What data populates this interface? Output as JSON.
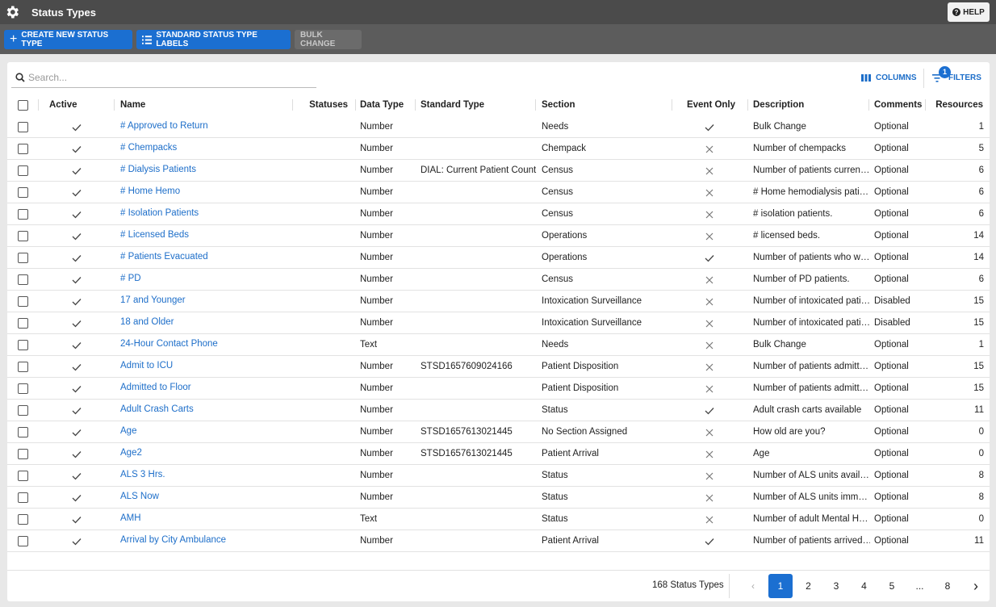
{
  "header": {
    "title": "Status Types",
    "help": "HELP"
  },
  "toolbar": {
    "create": "CREATE NEW STATUS TYPE",
    "labels": "STANDARD STATUS TYPE LABELS",
    "bulk": "BULK CHANGE"
  },
  "search": {
    "placeholder": "Search..."
  },
  "controls": {
    "columns": "COLUMNS",
    "filters": "FILTERS",
    "filter_count": 1
  },
  "table": {
    "columns": [
      "Active",
      "Name",
      "Statuses",
      "Data Type",
      "Standard Type",
      "Section",
      "Event Only",
      "Description",
      "Comments",
      "Resources"
    ],
    "rows": [
      {
        "active": true,
        "name": "# Approved to Return",
        "data_type": "Number",
        "standard_type": null,
        "section": "Needs",
        "event_only": true,
        "description": "Bulk Change",
        "comments": "Optional",
        "resources": 1
      },
      {
        "active": true,
        "name": "# Chempacks",
        "data_type": "Number",
        "standard_type": null,
        "section": "Chempack",
        "event_only": false,
        "description": "Number of chempacks",
        "comments": "Optional",
        "resources": 5
      },
      {
        "active": true,
        "name": "# Dialysis Patients",
        "data_type": "Number",
        "standard_type": "DIAL: Current Patient Count",
        "section": "Census",
        "event_only": false,
        "description": "Number of patients curren…",
        "comments": "Optional",
        "resources": 6
      },
      {
        "active": true,
        "name": "# Home Hemo",
        "data_type": "Number",
        "standard_type": null,
        "section": "Census",
        "event_only": false,
        "description": "# Home hemodialysis pati…",
        "comments": "Optional",
        "resources": 6
      },
      {
        "active": true,
        "name": "# Isolation Patients",
        "data_type": "Number",
        "standard_type": null,
        "section": "Census",
        "event_only": false,
        "description": "# isolation patients.",
        "comments": "Optional",
        "resources": 6
      },
      {
        "active": true,
        "name": "# Licensed Beds",
        "data_type": "Number",
        "standard_type": null,
        "section": "Operations",
        "event_only": false,
        "description": "# licensed beds.",
        "comments": "Optional",
        "resources": 14
      },
      {
        "active": true,
        "name": "# Patients Evacuated",
        "data_type": "Number",
        "standard_type": null,
        "section": "Operations",
        "event_only": true,
        "description": "Number of patients who w…",
        "comments": "Optional",
        "resources": 14
      },
      {
        "active": true,
        "name": "# PD",
        "data_type": "Number",
        "standard_type": null,
        "section": "Census",
        "event_only": false,
        "description": "Number of PD patients.",
        "comments": "Optional",
        "resources": 6
      },
      {
        "active": true,
        "name": "17 and Younger",
        "data_type": "Number",
        "standard_type": null,
        "section": "Intoxication Surveillance",
        "event_only": false,
        "description": "Number of intoxicated pati…",
        "comments": "Disabled",
        "resources": 15
      },
      {
        "active": true,
        "name": "18 and Older",
        "data_type": "Number",
        "standard_type": null,
        "section": "Intoxication Surveillance",
        "event_only": false,
        "description": "Number of intoxicated pati…",
        "comments": "Disabled",
        "resources": 15
      },
      {
        "active": true,
        "name": "24-Hour Contact Phone",
        "data_type": "Text",
        "standard_type": null,
        "section": "Needs",
        "event_only": false,
        "description": "Bulk Change",
        "comments": "Optional",
        "resources": 1
      },
      {
        "active": true,
        "name": "Admit to ICU",
        "data_type": "Number",
        "standard_type": "STSD1657609024166",
        "section": "Patient Disposition",
        "event_only": false,
        "description": "Number of patients admitt…",
        "comments": "Optional",
        "resources": 15
      },
      {
        "active": true,
        "name": "Admitted to Floor",
        "data_type": "Number",
        "standard_type": null,
        "section": "Patient Disposition",
        "event_only": false,
        "description": "Number of patients admitt…",
        "comments": "Optional",
        "resources": 15
      },
      {
        "active": true,
        "name": "Adult Crash Carts",
        "data_type": "Number",
        "standard_type": null,
        "section": "Status",
        "event_only": true,
        "description": "Adult crash carts available",
        "comments": "Optional",
        "resources": 11
      },
      {
        "active": true,
        "name": "Age",
        "data_type": "Number",
        "standard_type": "STSD1657613021445",
        "section": "No Section Assigned",
        "event_only": false,
        "description": "How old are you?",
        "comments": "Optional",
        "resources": 0
      },
      {
        "active": true,
        "name": "Age2",
        "data_type": "Number",
        "standard_type": "STSD1657613021445",
        "section": "Patient Arrival",
        "event_only": false,
        "description": "Age",
        "comments": "Optional",
        "resources": 0
      },
      {
        "active": true,
        "name": "ALS 3 Hrs.",
        "data_type": "Number",
        "standard_type": null,
        "section": "Status",
        "event_only": false,
        "description": "Number of ALS units avail…",
        "comments": "Optional",
        "resources": 8
      },
      {
        "active": true,
        "name": "ALS Now",
        "data_type": "Number",
        "standard_type": null,
        "section": "Status",
        "event_only": false,
        "description": "Number of ALS units imm…",
        "comments": "Optional",
        "resources": 8
      },
      {
        "active": true,
        "name": "AMH",
        "data_type": "Text",
        "standard_type": null,
        "section": "Status",
        "event_only": false,
        "description": "Number of adult Mental H…",
        "comments": "Optional",
        "resources": 0
      },
      {
        "active": true,
        "name": "Arrival by City Ambulance",
        "data_type": "Number",
        "standard_type": null,
        "section": "Patient Arrival",
        "event_only": true,
        "description": "Number of patients arrived…",
        "comments": "Optional",
        "resources": 11
      }
    ]
  },
  "footer": {
    "total": "168 Status Types",
    "pages": [
      "1",
      "2",
      "3",
      "4",
      "5",
      "...",
      "8"
    ],
    "current": 0
  }
}
